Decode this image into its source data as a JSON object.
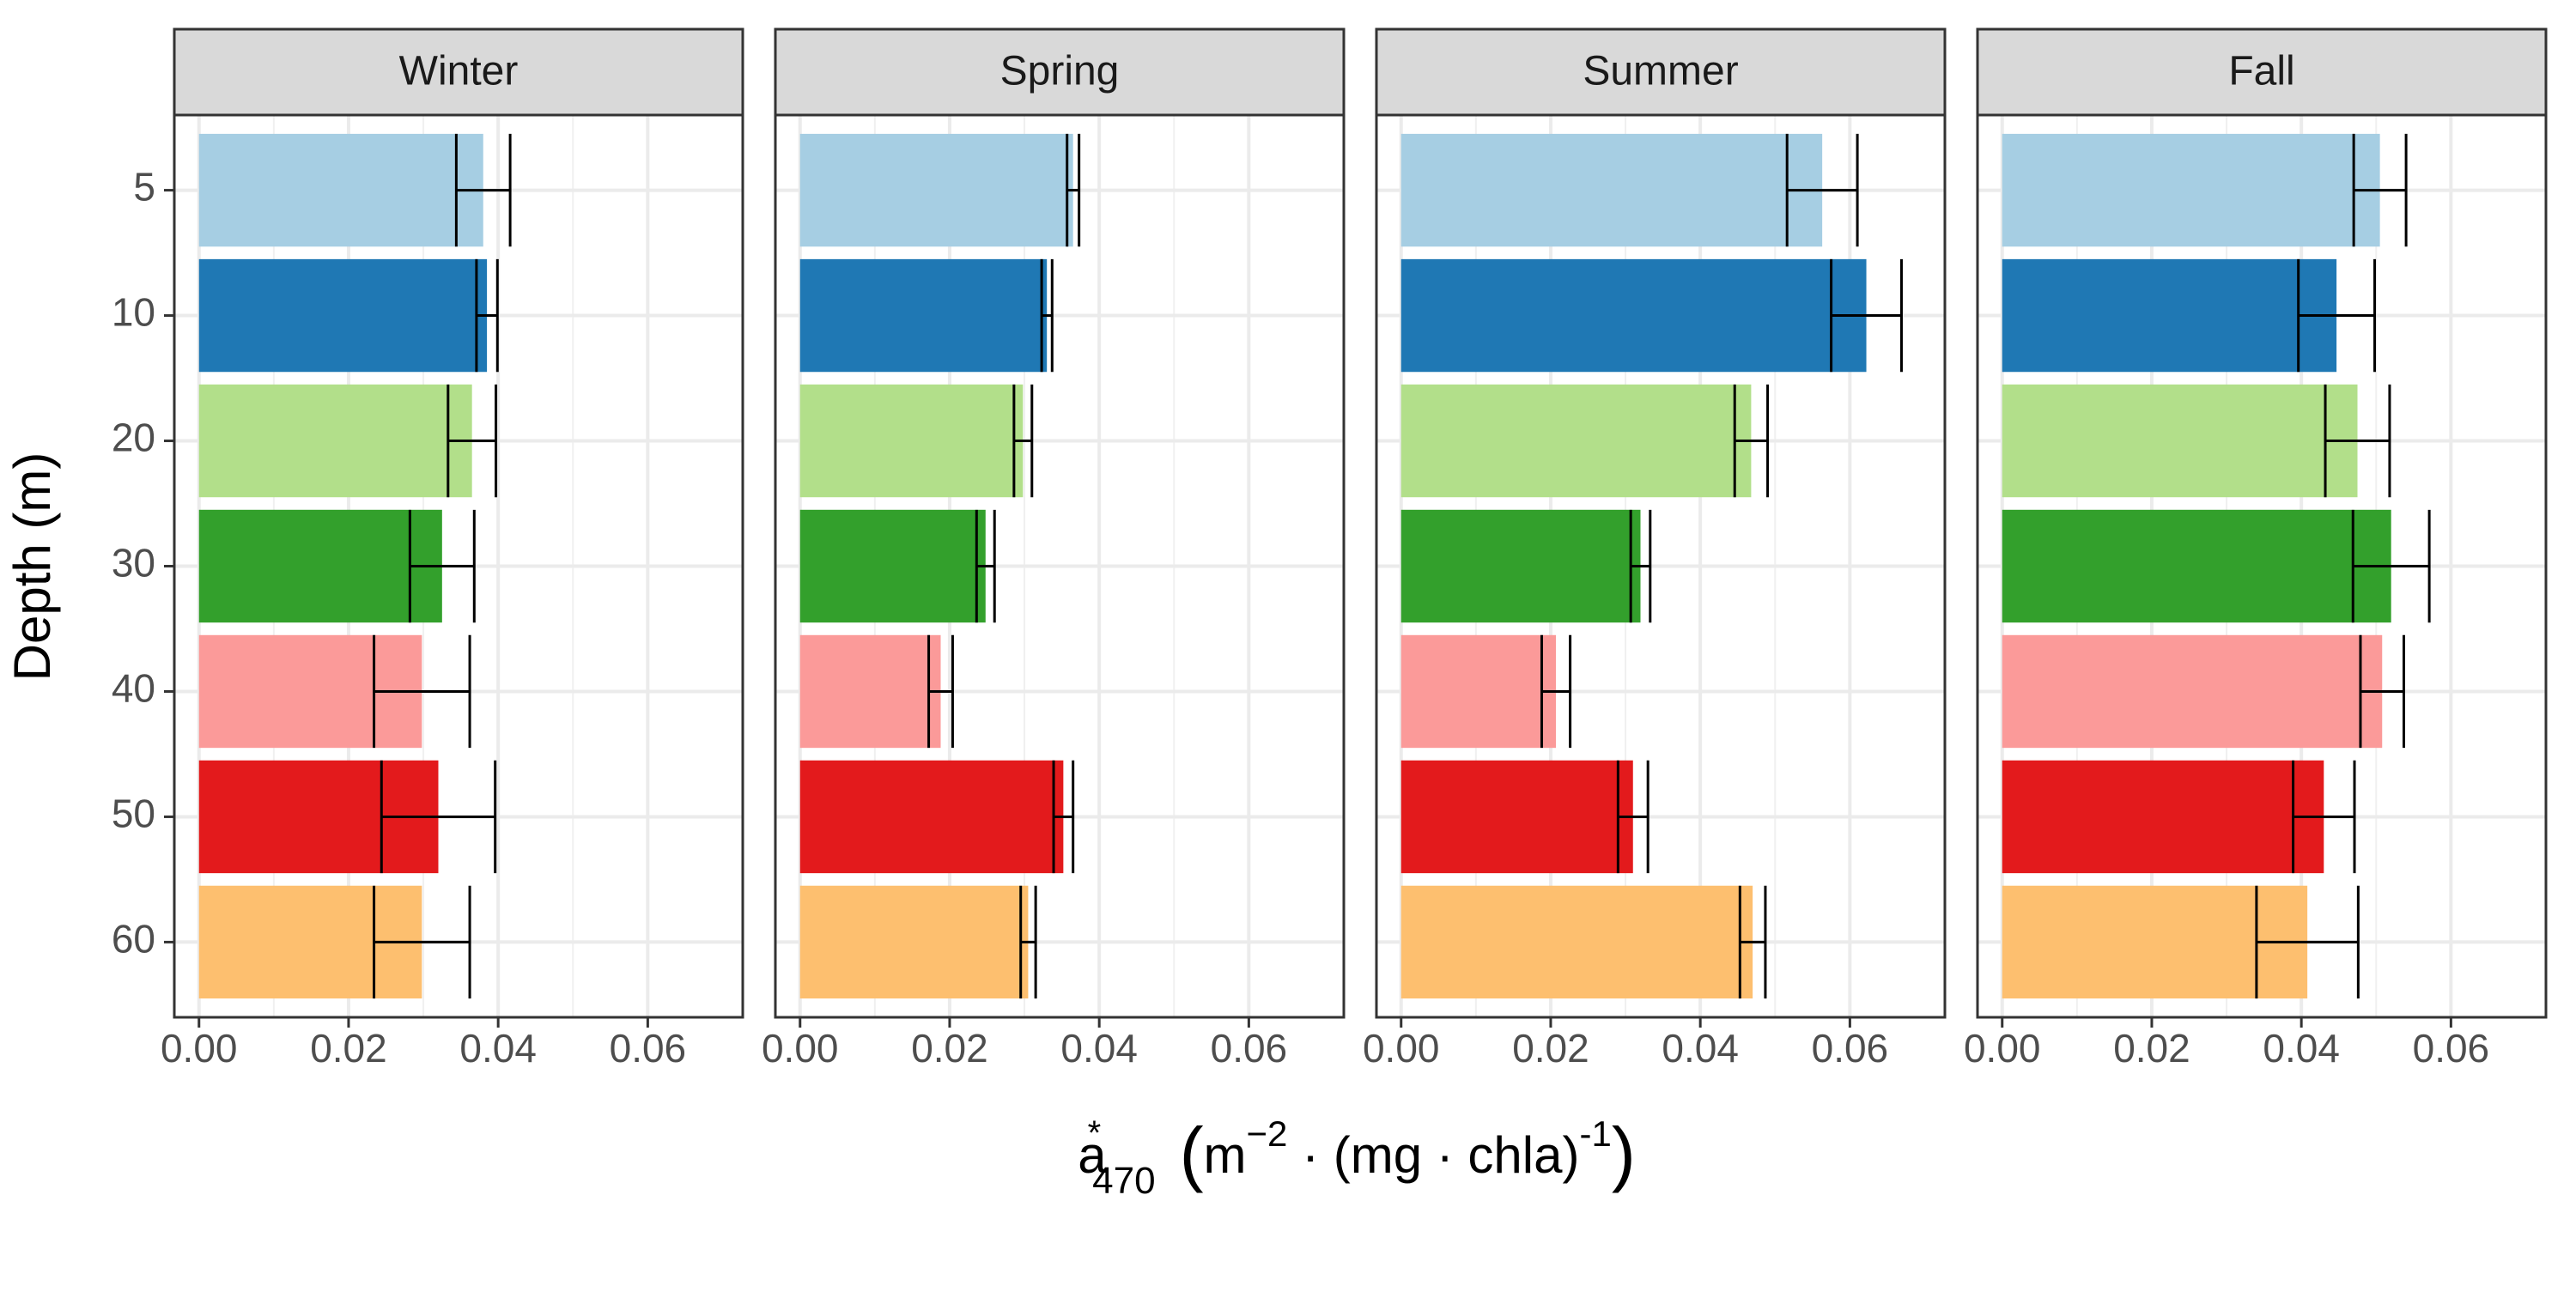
{
  "chart_data": {
    "type": "bar",
    "orientation": "horizontal",
    "facet_by": "season",
    "facets": [
      "Winter",
      "Spring",
      "Summer",
      "Fall"
    ],
    "categories": [
      "5",
      "10",
      "20",
      "30",
      "40",
      "50",
      "60"
    ],
    "ylabel": "Depth (m)",
    "xlabel": {
      "base": "a",
      "superscript": "*",
      "subscript": "470",
      "unit_open": "(",
      "unit_m": "m",
      "unit_m_exp": "−2",
      "unit_middle": " · (mg · chla)",
      "unit_exp": "-1",
      "unit_close": ")"
    },
    "xlim": [
      -0.0033,
      0.0727
    ],
    "xticks": [
      "0.00",
      "0.02",
      "0.04",
      "0.06"
    ],
    "xtick_values": [
      0.0,
      0.02,
      0.04,
      0.06
    ],
    "grid": true,
    "legend": "none",
    "colors": [
      "#A6CEE3",
      "#1F78B4",
      "#B2DF8A",
      "#33A02C",
      "#FB9A99",
      "#E31A1C",
      "#FDBF6F"
    ],
    "panels": [
      {
        "facet": "Winter",
        "values": [
          0.038,
          0.0385,
          0.0365,
          0.0325,
          0.0298,
          0.032,
          0.0298
        ],
        "err": [
          0.0036,
          0.0014,
          0.0032,
          0.0043,
          0.0064,
          0.0076,
          0.0064
        ]
      },
      {
        "facet": "Spring",
        "values": [
          0.0365,
          0.033,
          0.0298,
          0.0248,
          0.0188,
          0.0352,
          0.0305
        ],
        "err": [
          0.0008,
          0.0007,
          0.0012,
          0.0012,
          0.0016,
          0.0013,
          0.001
        ]
      },
      {
        "facet": "Summer",
        "values": [
          0.0563,
          0.0622,
          0.0468,
          0.032,
          0.0207,
          0.031,
          0.047
        ],
        "err": [
          0.0047,
          0.0047,
          0.0022,
          0.0013,
          0.0019,
          0.002,
          0.0017
        ]
      },
      {
        "facet": "Fall",
        "values": [
          0.0505,
          0.0447,
          0.0475,
          0.052,
          0.0508,
          0.043,
          0.0408
        ],
        "err": [
          0.0035,
          0.0051,
          0.0043,
          0.0051,
          0.0029,
          0.0041,
          0.0068
        ]
      }
    ]
  }
}
